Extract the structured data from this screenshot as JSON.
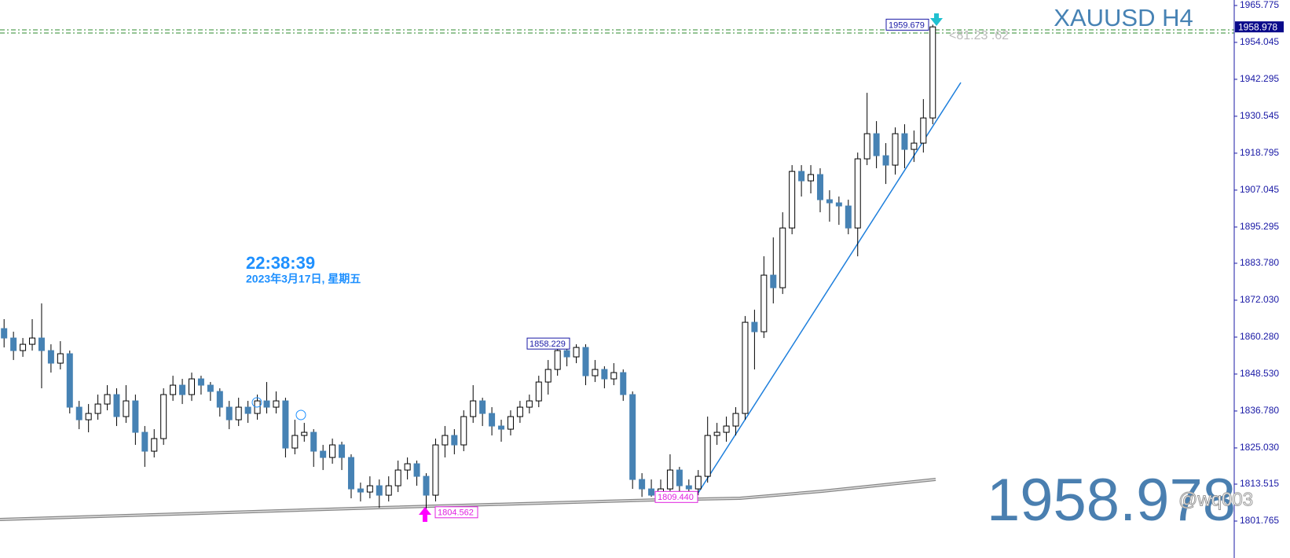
{
  "chart_data": {
    "type": "candlestick",
    "title": "XAUUSD H4",
    "clock": "22:38:39",
    "date": "2023年3月17日, 星期五",
    "watermark": "@wq003",
    "spread_note": "<81.23 .62",
    "last_price": 1958.978,
    "ylim": [
      1790.015,
      1967.525
    ],
    "yticks": [
      1965.775,
      1954.045,
      1942.295,
      1930.545,
      1918.795,
      1907.045,
      1895.295,
      {
        "value": 1883.78,
        "label": "1883.780"
      },
      {
        "value": 1872.03,
        "label": "1872.030"
      },
      {
        "value": 1860.28,
        "label": "1860.280"
      },
      {
        "value": 1848.53,
        "label": "1848.530"
      },
      {
        "value": 1836.78,
        "label": "1836.780"
      },
      {
        "value": 1825.03,
        "label": "1825.030"
      },
      1813.515,
      1801.765
    ],
    "price_labels": [
      1959.679,
      1858.229,
      {
        "value": 1809.44,
        "label": "1809.440"
      },
      1804.562
    ],
    "up_color": "#ffffff",
    "down_color": "#4682b4",
    "candles": [
      [
        1863,
        1866,
        1857,
        1860
      ],
      [
        1860,
        1862,
        1853,
        1856
      ],
      [
        1856,
        1860,
        1854,
        1858
      ],
      [
        1858,
        1866,
        1856,
        1860
      ],
      [
        1860,
        1871,
        1844,
        1856
      ],
      [
        1856,
        1858,
        1849,
        1852
      ],
      [
        1852,
        1859,
        1850,
        1855
      ],
      [
        1855,
        1856,
        1836,
        1838
      ],
      [
        1838,
        1840,
        1831,
        1834
      ],
      [
        1834,
        1839,
        1830,
        1836
      ],
      [
        1836,
        1842,
        1834,
        1839
      ],
      [
        1839,
        1845,
        1837,
        1842
      ],
      [
        1842,
        1844,
        1832,
        1835
      ],
      [
        1835,
        1845,
        1833,
        1840
      ],
      [
        1840,
        1842,
        1826,
        1830
      ],
      [
        1830,
        1832,
        1819,
        1824
      ],
      [
        1824,
        1831,
        1822,
        1828
      ],
      [
        1828,
        1844,
        1826,
        1842
      ],
      [
        1842,
        1848,
        1840,
        1845
      ],
      [
        1845,
        1847,
        1839,
        1842
      ],
      [
        1842,
        1849,
        1840,
        1847
      ],
      [
        1847,
        1848,
        1842,
        1845
      ],
      [
        1845,
        1846,
        1840,
        1843
      ],
      [
        1843,
        1844,
        1835,
        1838
      ],
      [
        1838,
        1840,
        1831,
        1834
      ],
      [
        1834,
        1841,
        1832,
        1838
      ],
      [
        1838,
        1840,
        1833,
        1836
      ],
      [
        1836,
        1842,
        1834,
        1840
      ],
      [
        1840,
        1846,
        1836,
        1838
      ],
      [
        1838,
        1843,
        1836,
        1840
      ],
      [
        1840,
        1841,
        1822,
        1825
      ],
      [
        1825,
        1834,
        1823,
        1829
      ],
      [
        1829,
        1833,
        1827,
        1830
      ],
      [
        1830,
        1831,
        1819,
        1824
      ],
      [
        1824,
        1826,
        1818,
        1822
      ],
      [
        1822,
        1828,
        1820,
        1826
      ],
      [
        1826,
        1827,
        1818,
        1822
      ],
      [
        1822,
        1823,
        1809,
        1812
      ],
      [
        1812,
        1814,
        1808,
        1811
      ],
      [
        1811,
        1816,
        1809,
        1813
      ],
      [
        1813,
        1815,
        1806,
        1810
      ],
      [
        1810,
        1816,
        1808,
        1813
      ],
      [
        1813,
        1821,
        1811,
        1818
      ],
      [
        1818,
        1822,
        1815,
        1820
      ],
      [
        1820,
        1821,
        1813,
        1816
      ],
      [
        1816,
        1817,
        1804.562,
        1810
      ],
      [
        1810,
        1828,
        1808,
        1826
      ],
      [
        1826,
        1832,
        1822,
        1829
      ],
      [
        1829,
        1831,
        1823,
        1826
      ],
      [
        1826,
        1837,
        1824,
        1835
      ],
      [
        1835,
        1845,
        1833,
        1840
      ],
      [
        1840,
        1841,
        1832,
        1836
      ],
      [
        1836,
        1838,
        1829,
        1832
      ],
      [
        1832,
        1834,
        1827,
        1831
      ],
      [
        1831,
        1837,
        1829,
        1835
      ],
      [
        1835,
        1840,
        1833,
        1838
      ],
      [
        1838,
        1842,
        1836,
        1840
      ],
      [
        1840,
        1848,
        1838,
        1846
      ],
      [
        1846,
        1853,
        1842,
        1850
      ],
      [
        1850,
        1858.229,
        1848,
        1856
      ],
      [
        1856,
        1857,
        1851,
        1854
      ],
      [
        1854,
        1858,
        1852,
        1857
      ],
      [
        1857,
        1858,
        1845,
        1848
      ],
      [
        1848,
        1853,
        1846,
        1850
      ],
      [
        1850,
        1851,
        1844,
        1847
      ],
      [
        1847,
        1852,
        1845,
        1849
      ],
      [
        1849,
        1850,
        1840,
        1842
      ],
      [
        1842,
        1843,
        1812,
        1815
      ],
      [
        1815,
        1817,
        1809.44,
        1812
      ],
      [
        1812,
        1815,
        1809.5,
        1810
      ],
      [
        1810,
        1815,
        1809.5,
        1812
      ],
      [
        1812,
        1823,
        1810,
        1818
      ],
      [
        1818,
        1819,
        1811,
        1813
      ],
      [
        1813,
        1815,
        1810,
        1812
      ],
      [
        1812,
        1818,
        1810,
        1816
      ],
      [
        1816,
        1835,
        1814,
        1829
      ],
      [
        1829,
        1833,
        1826,
        1830
      ],
      [
        1830,
        1835,
        1827,
        1832
      ],
      [
        1832,
        1838,
        1829,
        1836
      ],
      [
        1836,
        1867,
        1834,
        1865
      ],
      [
        1865,
        1869,
        1850,
        1862
      ],
      [
        1862,
        1886,
        1860,
        1880
      ],
      [
        1880,
        1892,
        1871,
        1876
      ],
      [
        1876,
        1900,
        1874,
        1895
      ],
      [
        1895,
        1915,
        1893,
        1913
      ],
      [
        1913,
        1915,
        1905,
        1910
      ],
      [
        1910,
        1915,
        1906,
        1912
      ],
      [
        1912,
        1914,
        1900,
        1904
      ],
      [
        1904,
        1907,
        1897,
        1903
      ],
      [
        1903,
        1905,
        1896,
        1902
      ],
      [
        1902,
        1904,
        1893,
        1895
      ],
      [
        1895,
        1919,
        1886,
        1917
      ],
      [
        1917,
        1938,
        1915,
        1925
      ],
      [
        1925,
        1929,
        1914,
        1918
      ],
      [
        1918,
        1922,
        1909,
        1915
      ],
      [
        1915,
        1927,
        1912,
        1925
      ],
      [
        1925,
        1928,
        1914,
        1920
      ],
      [
        1920,
        1926,
        1916,
        1922
      ],
      [
        1922,
        1936,
        1919,
        1930
      ],
      [
        1930,
        1959.679,
        1928,
        1958.978
      ]
    ]
  }
}
